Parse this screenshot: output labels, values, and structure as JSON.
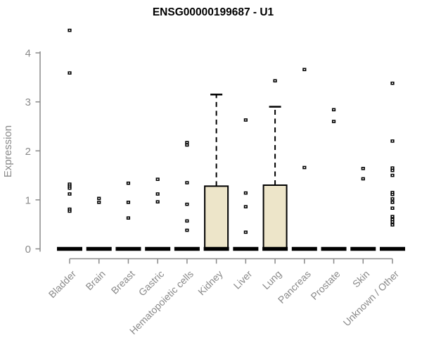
{
  "page": {
    "background": "#ffffff"
  },
  "chart_data": {
    "type": "boxplot",
    "title": "ENSG00000199687 - U1",
    "ylabel": "Expression",
    "xlabel": "",
    "ylim": [
      0,
      4.6
    ],
    "yticks": [
      0,
      1,
      2,
      3,
      4
    ],
    "grid": false,
    "legend": "none",
    "point_marker": "small-open-square",
    "colors": {
      "box_fill": "#ede5c9",
      "box_stroke": "#000000",
      "whisker": "#000000",
      "median_bar": "#000000",
      "axis": "#8a8a8a",
      "tick_text": "#8a8a8a",
      "title_text": "#000000",
      "point": "#000000"
    },
    "categories": [
      "Bladder",
      "Brain",
      "Breast",
      "Gastric",
      "Hematopoietic cells",
      "Kidney",
      "Liver",
      "Lung",
      "Pancreas",
      "Prostate",
      "Skin",
      "Unknown / Other"
    ],
    "series": [
      {
        "name": "Bladder",
        "q1": 0,
        "median": 0,
        "q3": 0,
        "whisker_low": 0,
        "whisker_high": 0,
        "outliers": [
          4.46,
          3.59,
          1.32,
          1.28,
          1.24,
          1.12,
          0.81,
          0.77
        ]
      },
      {
        "name": "Brain",
        "q1": 0,
        "median": 0,
        "q3": 0,
        "whisker_low": 0,
        "whisker_high": 0,
        "outliers": [
          1.03,
          0.95
        ]
      },
      {
        "name": "Breast",
        "q1": 0,
        "median": 0,
        "q3": 0,
        "whisker_low": 0,
        "whisker_high": 0,
        "outliers": [
          1.34,
          0.95,
          0.63
        ]
      },
      {
        "name": "Gastric",
        "q1": 0,
        "median": 0,
        "q3": 0,
        "whisker_low": 0,
        "whisker_high": 0,
        "outliers": [
          1.42,
          1.12,
          0.96
        ]
      },
      {
        "name": "Hematopoietic cells",
        "q1": 0,
        "median": 0,
        "q3": 0,
        "whisker_low": 0,
        "whisker_high": 0,
        "outliers": [
          2.17,
          2.12,
          1.35,
          0.91,
          0.57,
          0.38
        ]
      },
      {
        "name": "Kidney",
        "q1": 0,
        "median": 0,
        "q3": 1.28,
        "whisker_low": 0,
        "whisker_high": 3.15,
        "outliers": []
      },
      {
        "name": "Liver",
        "q1": 0,
        "median": 0,
        "q3": 0,
        "whisker_low": 0,
        "whisker_high": 0,
        "outliers": [
          2.63,
          1.14,
          0.86,
          0.34
        ]
      },
      {
        "name": "Lung",
        "q1": 0,
        "median": 0,
        "q3": 1.3,
        "whisker_low": 0,
        "whisker_high": 2.9,
        "outliers": [
          3.43
        ]
      },
      {
        "name": "Pancreas",
        "q1": 0,
        "median": 0,
        "q3": 0,
        "whisker_low": 0,
        "whisker_high": 0,
        "outliers": [
          3.66,
          1.66
        ]
      },
      {
        "name": "Prostate",
        "q1": 0,
        "median": 0,
        "q3": 0,
        "whisker_low": 0,
        "whisker_high": 0,
        "outliers": [
          2.84,
          2.6
        ]
      },
      {
        "name": "Skin",
        "q1": 0,
        "median": 0,
        "q3": 0,
        "whisker_low": 0,
        "whisker_high": 0,
        "outliers": [
          1.64,
          1.43
        ]
      },
      {
        "name": "Unknown / Other",
        "q1": 0,
        "median": 0,
        "q3": 0,
        "whisker_low": 0,
        "whisker_high": 0,
        "outliers": [
          3.38,
          2.2,
          1.65,
          1.6,
          1.5,
          1.15,
          1.11,
          1.02,
          0.95,
          0.83,
          0.66,
          0.6,
          0.55,
          0.49
        ]
      }
    ]
  }
}
